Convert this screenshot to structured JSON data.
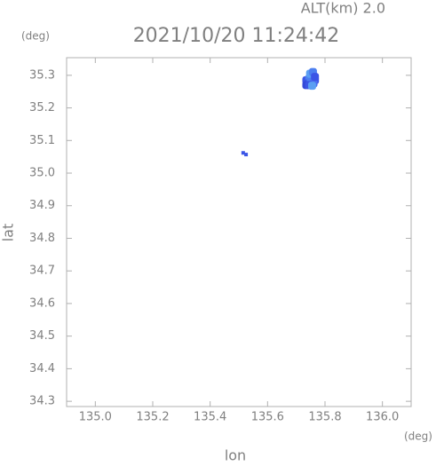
{
  "chart_data": {
    "type": "scatter",
    "title": "2021/10/20 11:24:42",
    "altitude_label": "ALT(km) 2.0",
    "y_unit": "(deg)",
    "x_unit": "(deg)",
    "x_label": "lon",
    "y_label": "lat",
    "xlim": [
      134.9,
      136.1
    ],
    "ylim": [
      34.284,
      35.354
    ],
    "xticks": [
      {
        "value": 135.0,
        "label": "135.0"
      },
      135.2,
      135.4,
      135.6,
      135.8,
      {
        "value": 136.0,
        "label": "136.0"
      }
    ],
    "yticks": [
      34.3,
      34.4,
      34.5,
      34.6,
      34.7,
      34.8,
      34.9,
      {
        "value": 35.0,
        "label": "35.0"
      },
      35.1,
      35.2,
      35.3
    ],
    "x": [
      135.735,
      135.745,
      135.755,
      135.765,
      135.74,
      135.75,
      135.76,
      135.735,
      135.748,
      135.758,
      135.745,
      135.755,
      135.765,
      135.515,
      135.525
    ],
    "values": [
      35.285,
      35.29,
      35.3,
      35.285,
      35.275,
      35.28,
      35.275,
      35.27,
      35.305,
      35.31,
      35.27,
      35.268,
      35.295,
      35.062,
      35.057
    ],
    "point_colors": [
      "#3b55e6",
      "#4c7ff0",
      "#5a9ff2",
      "#3b55e6",
      "#3b55e6",
      "#4c7ff0",
      "#4a6ef0",
      "#3349d8",
      "#5a9ff2",
      "#4c7ff0",
      "#3b55e6",
      "#5a9ff2",
      "#3b55e6",
      "#3b55e6",
      "#3b55e6"
    ]
  }
}
